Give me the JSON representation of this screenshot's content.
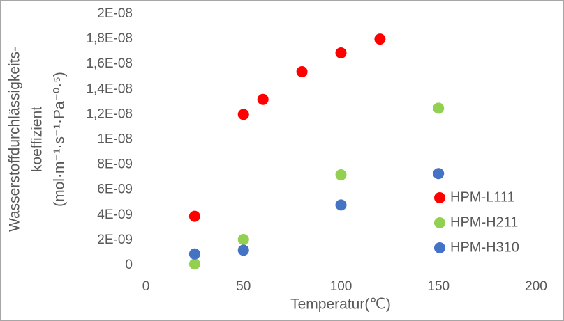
{
  "chart_data": {
    "type": "scatter",
    "xlabel": "Temperatur(℃)",
    "ylabel": [
      "Wasserstoffdurchlässigkeits-",
      "koeffizient",
      "(mol·m⁻¹·s⁻¹·Pa⁻⁰·⁵)"
    ],
    "xlim": [
      0,
      200
    ],
    "xticks": [
      0,
      50,
      100,
      150,
      200
    ],
    "ylim": [
      0,
      2e-08
    ],
    "yticks": [
      0,
      {
        "value": 2e-09,
        "label": "2E-09"
      },
      {
        "value": 4e-09,
        "label": "4E-09"
      },
      {
        "value": 6e-09,
        "label": "6E-09"
      },
      {
        "value": 8e-09,
        "label": "8E-09"
      },
      {
        "value": 1e-08,
        "label": "1E-08"
      },
      {
        "value": 1.2e-08,
        "label": "1,2E-08"
      },
      {
        "value": 1.4e-08,
        "label": "1,4E-08"
      },
      {
        "value": 1.6e-08,
        "label": "1,6E-08"
      },
      {
        "value": 1.8e-08,
        "label": "1,8E-08"
      },
      {
        "value": 2e-08,
        "label": "2E-08"
      }
    ],
    "grid": false,
    "legend": "lower right",
    "series": [
      {
        "name": "HPM-L111",
        "color": "#ff0000",
        "x": [
          25,
          50,
          60,
          80,
          100,
          120
        ],
        "values": [
          3.9e-09,
          1.2e-08,
          1.32e-08,
          1.54e-08,
          1.69e-08,
          1.8e-08
        ]
      },
      {
        "name": "HPM-H211",
        "color": "#92d050",
        "x": [
          25,
          50,
          100,
          150
        ],
        "values": [
          1e-10,
          2.05e-09,
          7.2e-09,
          1.25e-08
        ]
      },
      {
        "name": "HPM-H310",
        "color": "#4472c4",
        "x": [
          25,
          50,
          100,
          150
        ],
        "values": [
          9e-10,
          1.2e-09,
          4.8e-09,
          7.3e-09
        ]
      }
    ]
  }
}
